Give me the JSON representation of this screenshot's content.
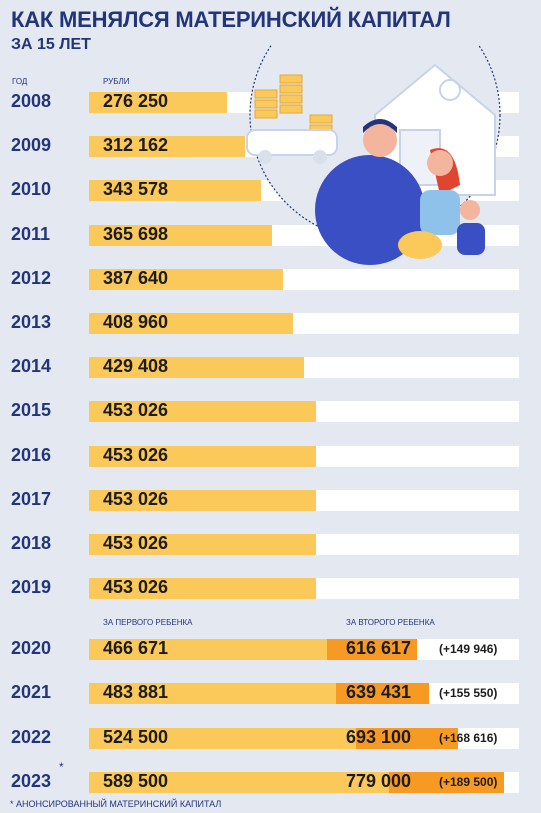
{
  "header": {
    "title": "КАК МЕНЯЛСЯ МАТЕРИНСКИЙ КАПИТАЛ",
    "subtitle": "ЗА 15 ЛЕТ",
    "col_year": "ГОД",
    "col_rub": "РУБЛИ",
    "col_first": "ЗА ПЕРВОГО РЕБЕНКА",
    "col_second": "ЗА ВТОРОГО РЕБЕНКА"
  },
  "footnote": "* АНОНСИРОВАННЫЙ МАТЕРИНСКИЙ КАПИТАЛ",
  "colors": {
    "bar": "#fbc85a",
    "bar_second": "#f79a24",
    "track": "#ffffff",
    "text": "#23357a"
  },
  "chart_data": {
    "type": "bar",
    "orientation": "horizontal",
    "categories": [
      "2008",
      "2009",
      "2010",
      "2011",
      "2012",
      "2013",
      "2014",
      "2015",
      "2016",
      "2017",
      "2018",
      "2019"
    ],
    "values": [
      276250,
      312162,
      343578,
      365698,
      387640,
      408960,
      429408,
      453026,
      453026,
      453026,
      453026,
      453026
    ],
    "labels": [
      "276 250",
      "312 162",
      "343 578",
      "365 698",
      "387 640",
      "408 960",
      "429 408",
      "453 026",
      "453 026",
      "453 026",
      "453 026",
      "453 026"
    ],
    "years2": [
      "2020",
      "2021",
      "2022",
      "2023"
    ],
    "first_child": {
      "values": [
        466671,
        483881,
        524500,
        589500
      ],
      "labels": [
        "466 671",
        "483 881",
        "524 500",
        "589 500"
      ]
    },
    "second_child": {
      "values": [
        616617,
        639431,
        693100,
        779000
      ],
      "labels": [
        "616 617",
        "639 431",
        "693 100",
        "779 000"
      ],
      "difference": [
        "(+149 946)",
        "(+155 550)",
        "(+168 616)",
        "(+189 500)"
      ]
    },
    "annotations": [
      "*"
    ]
  }
}
